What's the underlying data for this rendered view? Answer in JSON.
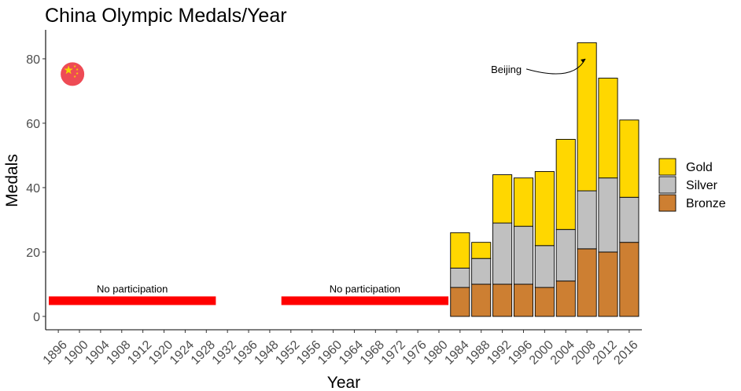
{
  "colors": {
    "gold": "#FFD700",
    "silver": "#C0C0C0",
    "bronze": "#CD7F32",
    "no_participation_bar": "#FF0000",
    "flag_red": "#EE4B55",
    "flag_star": "#F3D500"
  },
  "chart_data": {
    "type": "bar",
    "stacked": true,
    "title": "China Olympic Medals/Year",
    "xlabel": "Year",
    "ylabel": "Medals",
    "ylim": [
      0,
      89
    ],
    "yticks": [
      0,
      20,
      40,
      60,
      80
    ],
    "grid": false,
    "legend_position": "right",
    "categories": [
      "1896",
      "1900",
      "1904",
      "1908",
      "1912",
      "1920",
      "1924",
      "1928",
      "1932",
      "1936",
      "1948",
      "1952",
      "1956",
      "1960",
      "1964",
      "1968",
      "1972",
      "1976",
      "1980",
      "1984",
      "1988",
      "1992",
      "1996",
      "2000",
      "2004",
      "2008",
      "2012",
      "2016"
    ],
    "series": [
      {
        "name": "Bronze",
        "color_key": "bronze",
        "values": [
          0,
          0,
          0,
          0,
          0,
          0,
          0,
          0,
          0,
          0,
          0,
          0,
          0,
          0,
          0,
          0,
          0,
          0,
          0,
          9,
          10,
          10,
          10,
          9,
          11,
          21,
          20,
          23
        ]
      },
      {
        "name": "Silver",
        "color_key": "silver",
        "values": [
          0,
          0,
          0,
          0,
          0,
          0,
          0,
          0,
          0,
          0,
          0,
          0,
          0,
          0,
          0,
          0,
          0,
          0,
          0,
          6,
          8,
          19,
          18,
          13,
          16,
          18,
          23,
          14
        ]
      },
      {
        "name": "Gold",
        "color_key": "gold",
        "values": [
          0,
          0,
          0,
          0,
          0,
          0,
          0,
          0,
          0,
          0,
          0,
          0,
          0,
          0,
          0,
          0,
          0,
          0,
          0,
          11,
          5,
          15,
          15,
          23,
          28,
          46,
          31,
          24
        ]
      }
    ],
    "legend": [
      "Gold",
      "Silver",
      "Bronze"
    ],
    "annotations": [
      {
        "text": "No participation",
        "from": "1896",
        "to": "1928",
        "y": 5
      },
      {
        "text": "No participation",
        "from": "1952",
        "to": "1980",
        "y": 5
      },
      {
        "text": "Beijing",
        "category": "2008",
        "y": 80
      }
    ],
    "flag": {
      "icon": "china-flag-icon",
      "category": "1896",
      "y": 75
    }
  }
}
